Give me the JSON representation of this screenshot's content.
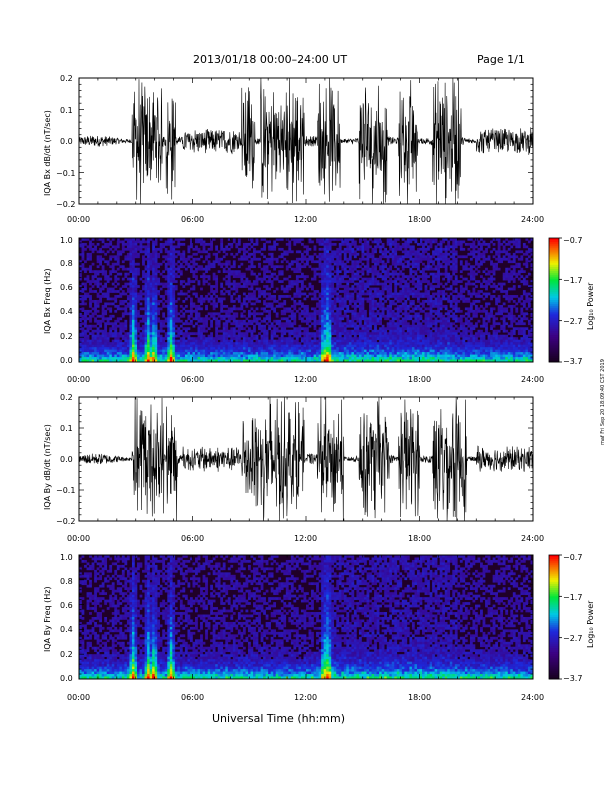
{
  "header": {
    "title": "2013/01/18  00:00–24:00 UT",
    "page": "Page 1/1"
  },
  "footer": {
    "xlabel": "Universal Time (hh:mm)",
    "stamp": "maf Fri Sep 20 18:09:40 CST 2019"
  },
  "colors": {
    "spectrogram_low": "#200028",
    "spectrogram_high": "#ff0000",
    "trace": "#000000"
  },
  "chart_data": [
    {
      "type": "line",
      "id": "bx",
      "ylabel": "IQA Bx dB/dt (nT/sec)",
      "xticks": [
        "00:00",
        "06:00",
        "12:00",
        "18:00",
        "24:00"
      ],
      "yticks": [
        "0.2",
        "0.1",
        "0.0",
        "−0.1",
        "−0.2"
      ],
      "ylim": [
        -0.2,
        0.2
      ],
      "xlim_hours": [
        0,
        24
      ],
      "activity_bursts_hours": [
        [
          2.8,
          3.3
        ],
        [
          3.3,
          4.4
        ],
        [
          4.6,
          5.1
        ],
        [
          8.6,
          9.3
        ],
        [
          9.6,
          11.9
        ],
        [
          12.6,
          13.8
        ],
        [
          14.8,
          16.3
        ],
        [
          16.9,
          17.9
        ],
        [
          18.7,
          20.2
        ]
      ]
    },
    {
      "type": "heatmap",
      "id": "bx-freq",
      "ylabel": "IQA Bx Freq (Hz)",
      "xticks": [
        "00:00",
        "06:00",
        "12:00",
        "18:00",
        "24:00"
      ],
      "yticks": [
        "1.0",
        "0.8",
        "0.6",
        "0.4",
        "0.2",
        "0.0"
      ],
      "ylim": [
        0,
        1.0
      ],
      "colorbar_label": "Log₁₀ Power",
      "colorbar_ticks": [
        "−0.7",
        "−1.7",
        "−2.7",
        "−3.7"
      ],
      "colorbar_range": [
        -3.7,
        -0.7
      ],
      "hot_columns_hours": [
        2.8,
        3.6,
        3.9,
        4.8,
        12.9,
        13.1
      ]
    },
    {
      "type": "line",
      "id": "by",
      "ylabel": "IQA By dB/dt (nT/sec)",
      "xticks": [
        "00:00",
        "06:00",
        "12:00",
        "18:00",
        "24:00"
      ],
      "yticks": [
        "0.2",
        "0.1",
        "0.0",
        "−0.1",
        "−0.2"
      ],
      "ylim": [
        -0.2,
        0.2
      ],
      "xlim_hours": [
        0,
        24
      ],
      "activity_bursts_hours": [
        [
          2.8,
          3.3
        ],
        [
          3.3,
          4.5
        ],
        [
          4.6,
          5.2
        ],
        [
          8.6,
          9.5
        ],
        [
          9.6,
          11.9
        ],
        [
          12.6,
          14.0
        ],
        [
          14.8,
          16.4
        ],
        [
          16.9,
          18.0
        ],
        [
          18.7,
          20.5
        ]
      ]
    },
    {
      "type": "heatmap",
      "id": "by-freq",
      "ylabel": "IQA By Freq (Hz)",
      "xticks": [
        "00:00",
        "06:00",
        "12:00",
        "18:00",
        "24:00"
      ],
      "yticks": [
        "1.0",
        "0.8",
        "0.6",
        "0.4",
        "0.2",
        "0.0"
      ],
      "ylim": [
        0,
        1.0
      ],
      "colorbar_label": "Log₁₀ Power",
      "colorbar_ticks": [
        "−0.7",
        "−1.7",
        "−2.7",
        "−3.7"
      ],
      "colorbar_range": [
        -3.7,
        -0.7
      ],
      "hot_columns_hours": [
        2.8,
        3.6,
        3.9,
        4.8,
        12.9,
        13.1
      ]
    }
  ]
}
